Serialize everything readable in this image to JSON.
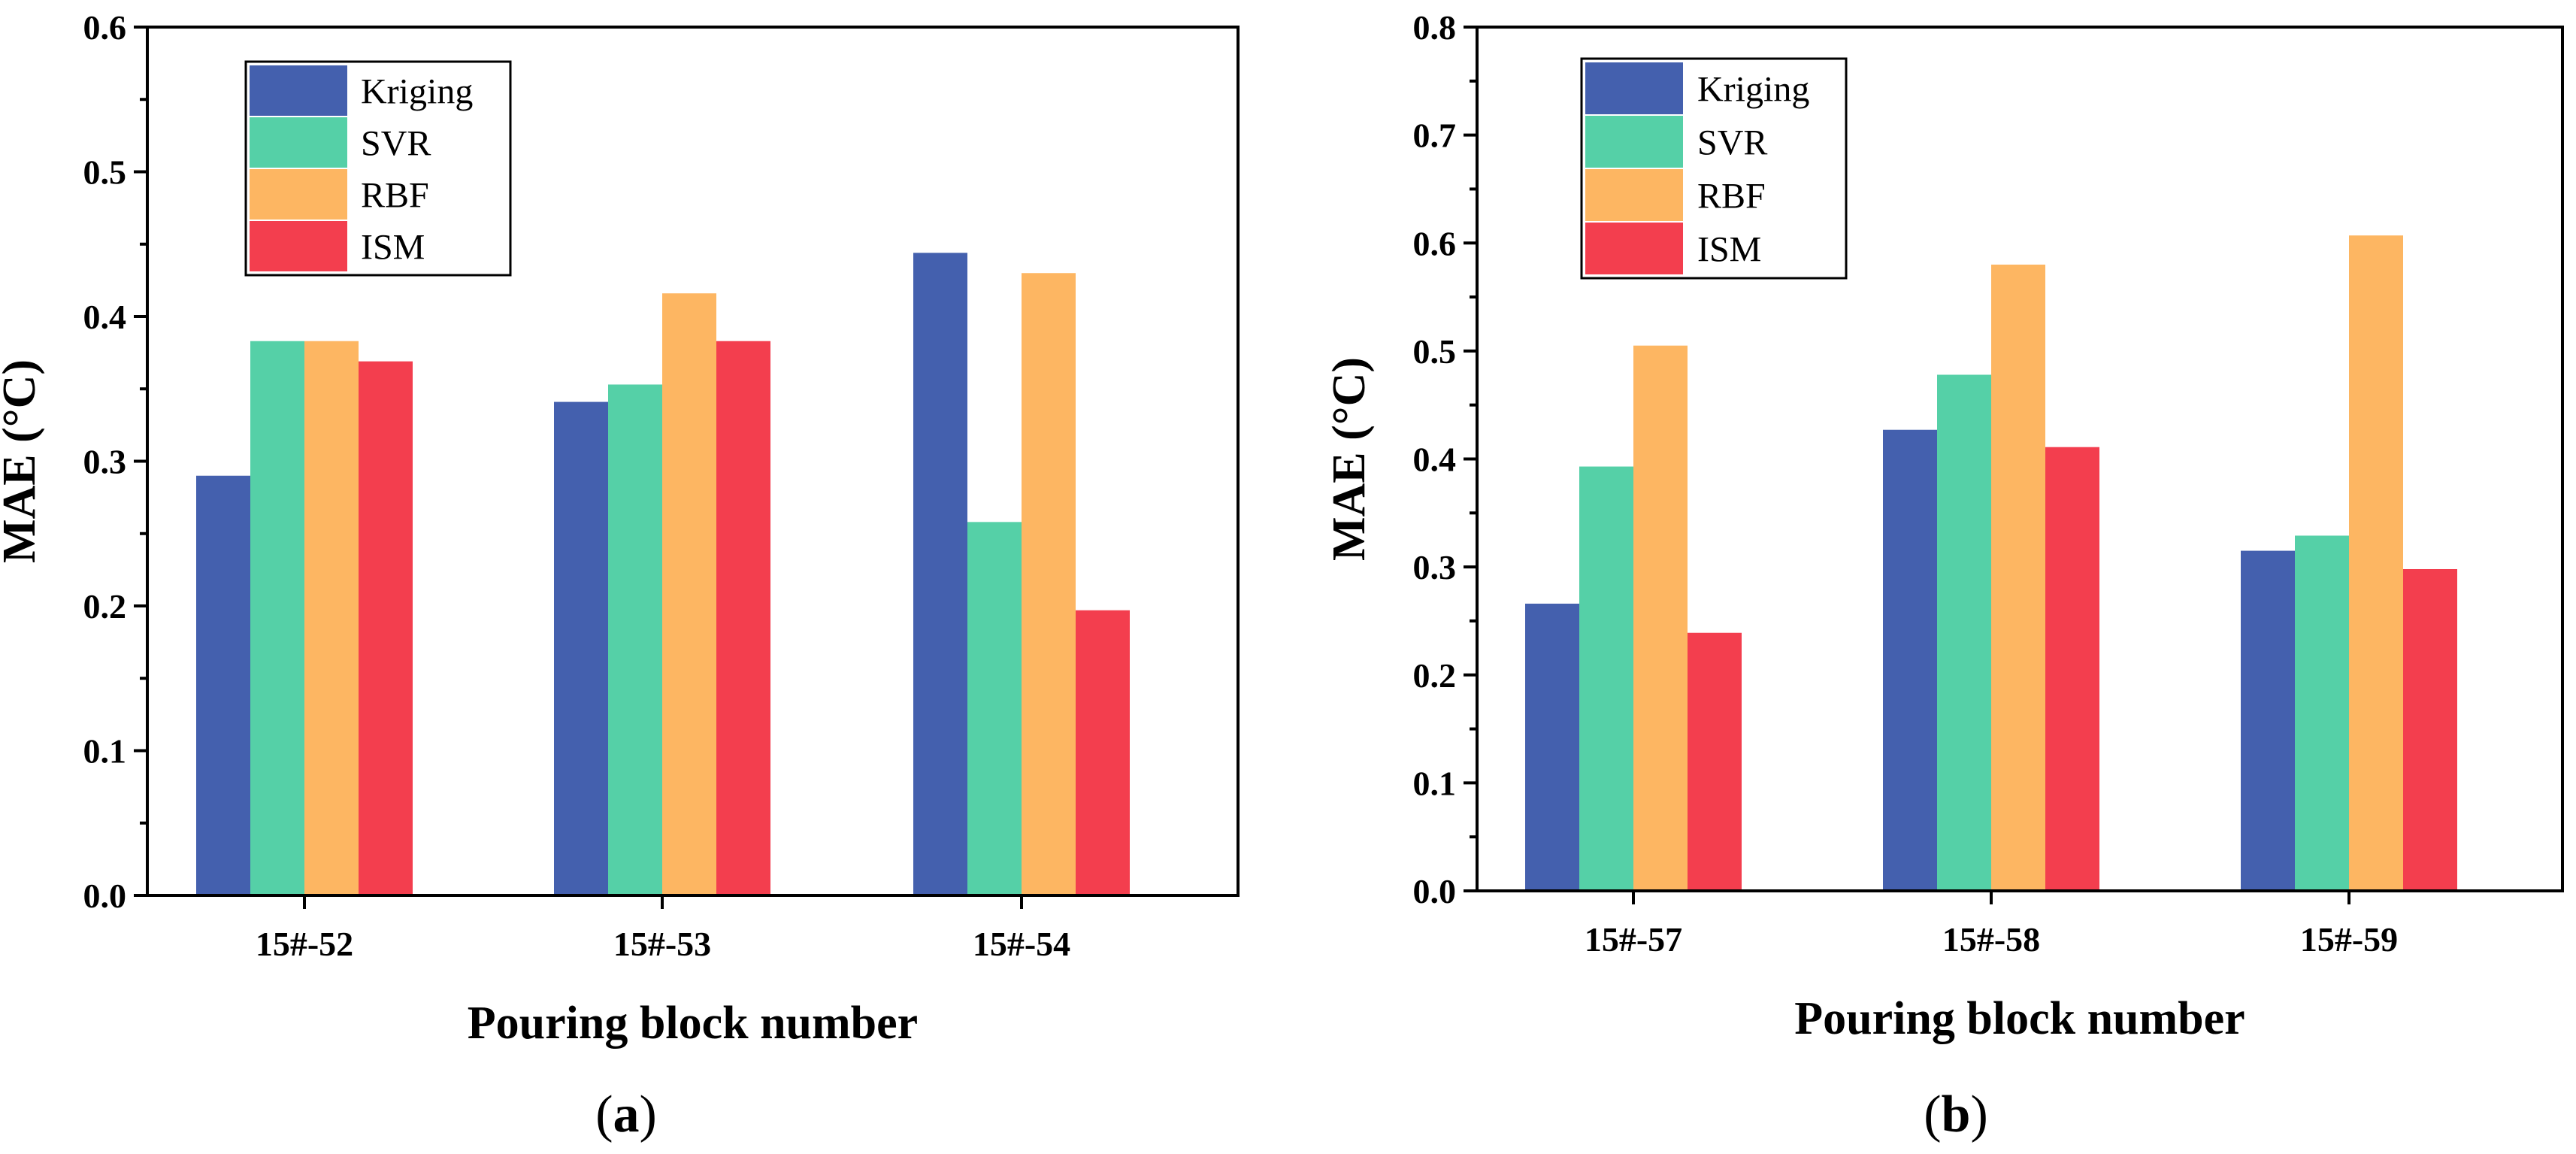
{
  "chart_data": [
    {
      "type": "bar",
      "panel_label": "a",
      "categories": [
        "15#-52",
        "15#-53",
        "15#-54"
      ],
      "series": [
        {
          "name": "Kriging",
          "color": "#4460ae",
          "values": [
            0.29,
            0.341,
            0.444
          ]
        },
        {
          "name": "SVR",
          "color": "#55d0a7",
          "values": [
            0.383,
            0.353,
            0.258
          ]
        },
        {
          "name": "RBF",
          "color": "#fdb662",
          "values": [
            0.383,
            0.416,
            0.43
          ]
        },
        {
          "name": "ISM",
          "color": "#f33e4e",
          "values": [
            0.369,
            0.383,
            0.197
          ]
        }
      ],
      "xlabel": "Pouring block number",
      "ylabel": "MAE (°C)",
      "ylim": [
        0,
        0.6
      ],
      "yticks": [
        "0.0",
        "0.1",
        "0.2",
        "0.3",
        "0.4",
        "0.5",
        "0.6"
      ],
      "legend_position": "top-left",
      "grid": false
    },
    {
      "type": "bar",
      "panel_label": "b",
      "categories": [
        "15#-57",
        "15#-58",
        "15#-59"
      ],
      "series": [
        {
          "name": "Kriging",
          "color": "#4460ae",
          "values": [
            0.266,
            0.427,
            0.315
          ]
        },
        {
          "name": "SVR",
          "color": "#55d0a7",
          "values": [
            0.393,
            0.478,
            0.329
          ]
        },
        {
          "name": "RBF",
          "color": "#fdb662",
          "values": [
            0.505,
            0.58,
            0.607
          ]
        },
        {
          "name": "ISM",
          "color": "#f33e4e",
          "values": [
            0.239,
            0.411,
            0.298
          ]
        }
      ],
      "xlabel": "Pouring block number",
      "ylabel": "MAE (°C)",
      "ylim": [
        0,
        0.8
      ],
      "yticks": [
        "0.0",
        "0.1",
        "0.2",
        "0.3",
        "0.4",
        "0.5",
        "0.6",
        "0.7",
        "0.8"
      ],
      "legend_position": "top-left",
      "grid": false
    }
  ]
}
